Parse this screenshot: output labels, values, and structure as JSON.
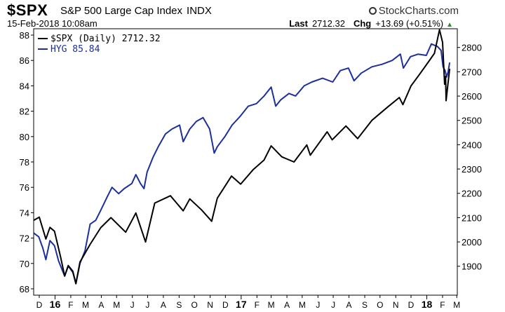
{
  "header": {
    "symbol": "$SPX",
    "name": "S&P 500 Large Cap Index",
    "exchange": "INDX",
    "brand": "StockCharts.com",
    "datetime": "15-Feb-2018 10:08am",
    "last_label": "Last",
    "last_value": "2712.32",
    "chg_label": "Chg",
    "chg_value": "+13.69 (+0.51%)",
    "up_glyph": "▲"
  },
  "chart_data": {
    "type": "line",
    "legend": [
      {
        "text": "$SPX (Daily) 2712.32",
        "color": "#000000"
      },
      {
        "text": "HYG 85.84",
        "color": "#1c2f9c"
      }
    ],
    "left_axis": {
      "series": "HYG",
      "range": [
        67.5,
        88.5
      ],
      "ticks": [
        68,
        70,
        72,
        74,
        76,
        78,
        80,
        82,
        84,
        86,
        88
      ]
    },
    "right_axis": {
      "series": "$SPX",
      "range": [
        1781,
        2877
      ],
      "ticks": [
        1900,
        2000,
        2100,
        2200,
        2300,
        2400,
        2500,
        2600,
        2700,
        2800
      ]
    },
    "x_axis": {
      "range": [
        "2015-11-20",
        "2018-03-02"
      ],
      "ticks": [
        {
          "label": "D",
          "date": "2015-12-01",
          "major": false
        },
        {
          "label": "16",
          "date": "2016-01-01",
          "major": true
        },
        {
          "label": "F",
          "date": "2016-02-01",
          "major": false
        },
        {
          "label": "M",
          "date": "2016-03-01",
          "major": false
        },
        {
          "label": "A",
          "date": "2016-04-01",
          "major": false
        },
        {
          "label": "M",
          "date": "2016-05-01",
          "major": false
        },
        {
          "label": "J",
          "date": "2016-06-01",
          "major": false
        },
        {
          "label": "J",
          "date": "2016-07-01",
          "major": false
        },
        {
          "label": "A",
          "date": "2016-08-01",
          "major": false
        },
        {
          "label": "S",
          "date": "2016-09-01",
          "major": false
        },
        {
          "label": "O",
          "date": "2016-10-01",
          "major": false
        },
        {
          "label": "N",
          "date": "2016-11-01",
          "major": false
        },
        {
          "label": "D",
          "date": "2016-12-01",
          "major": false
        },
        {
          "label": "17",
          "date": "2017-01-01",
          "major": true
        },
        {
          "label": "F",
          "date": "2017-02-01",
          "major": false
        },
        {
          "label": "M",
          "date": "2017-03-01",
          "major": false
        },
        {
          "label": "A",
          "date": "2017-04-01",
          "major": false
        },
        {
          "label": "M",
          "date": "2017-05-01",
          "major": false
        },
        {
          "label": "J",
          "date": "2017-06-01",
          "major": false
        },
        {
          "label": "J",
          "date": "2017-07-01",
          "major": false
        },
        {
          "label": "A",
          "date": "2017-08-01",
          "major": false
        },
        {
          "label": "S",
          "date": "2017-09-01",
          "major": false
        },
        {
          "label": "O",
          "date": "2017-10-01",
          "major": false
        },
        {
          "label": "N",
          "date": "2017-11-01",
          "major": false
        },
        {
          "label": "D",
          "date": "2017-12-01",
          "major": false
        },
        {
          "label": "18",
          "date": "2018-01-01",
          "major": true
        },
        {
          "label": "F",
          "date": "2018-02-01",
          "major": false
        },
        {
          "label": "M",
          "date": "2018-03-01",
          "major": false
        }
      ]
    },
    "grid": false,
    "series": [
      {
        "name": "HYG",
        "axis": "left",
        "color": "#1c2f9c",
        "points": [
          [
            "2015-11-20",
            72.4
          ],
          [
            "2015-11-30",
            72.1
          ],
          [
            "2015-12-08",
            71.2
          ],
          [
            "2015-12-14",
            70.3
          ],
          [
            "2015-12-22",
            71.8
          ],
          [
            "2015-12-31",
            71.4
          ],
          [
            "2016-01-08",
            70.2
          ],
          [
            "2016-01-20",
            69.0
          ],
          [
            "2016-01-27",
            69.8
          ],
          [
            "2016-02-05",
            69.3
          ],
          [
            "2016-02-11",
            68.4
          ],
          [
            "2016-02-19",
            70.0
          ],
          [
            "2016-02-29",
            71.0
          ],
          [
            "2016-03-10",
            73.1
          ],
          [
            "2016-03-21",
            73.4
          ],
          [
            "2016-03-31",
            74.2
          ],
          [
            "2016-04-12",
            75.2
          ],
          [
            "2016-04-22",
            76.0
          ],
          [
            "2016-05-05",
            75.5
          ],
          [
            "2016-05-16",
            75.9
          ],
          [
            "2016-05-31",
            76.3
          ],
          [
            "2016-06-08",
            77.0
          ],
          [
            "2016-06-17",
            76.3
          ],
          [
            "2016-06-24",
            75.9
          ],
          [
            "2016-06-30",
            77.2
          ],
          [
            "2016-07-12",
            78.4
          ],
          [
            "2016-07-22",
            79.2
          ],
          [
            "2016-08-05",
            80.2
          ],
          [
            "2016-08-18",
            80.6
          ],
          [
            "2016-09-02",
            80.9
          ],
          [
            "2016-09-09",
            79.6
          ],
          [
            "2016-09-22",
            80.6
          ],
          [
            "2016-10-05",
            81.2
          ],
          [
            "2016-10-18",
            81.5
          ],
          [
            "2016-10-31",
            80.6
          ],
          [
            "2016-11-09",
            78.7
          ],
          [
            "2016-11-15",
            79.2
          ],
          [
            "2016-11-30",
            80.0
          ],
          [
            "2016-12-14",
            80.9
          ],
          [
            "2016-12-30",
            81.6
          ],
          [
            "2017-01-15",
            82.4
          ],
          [
            "2017-01-31",
            82.6
          ],
          [
            "2017-02-15",
            83.2
          ],
          [
            "2017-03-01",
            83.9
          ],
          [
            "2017-03-10",
            82.4
          ],
          [
            "2017-03-20",
            82.9
          ],
          [
            "2017-04-05",
            83.4
          ],
          [
            "2017-04-18",
            83.2
          ],
          [
            "2017-05-05",
            84.0
          ],
          [
            "2017-05-20",
            84.3
          ],
          [
            "2017-06-10",
            84.6
          ],
          [
            "2017-06-30",
            84.3
          ],
          [
            "2017-07-15",
            85.2
          ],
          [
            "2017-07-31",
            85.4
          ],
          [
            "2017-08-11",
            84.4
          ],
          [
            "2017-08-25",
            85.0
          ],
          [
            "2017-09-15",
            85.5
          ],
          [
            "2017-10-05",
            85.7
          ],
          [
            "2017-10-25",
            86.0
          ],
          [
            "2017-11-10",
            86.5
          ],
          [
            "2017-11-16",
            85.4
          ],
          [
            "2017-11-30",
            86.3
          ],
          [
            "2017-12-15",
            86.5
          ],
          [
            "2017-12-31",
            86.4
          ],
          [
            "2018-01-10",
            87.3
          ],
          [
            "2018-01-22",
            87.1
          ],
          [
            "2018-01-29",
            86.8
          ],
          [
            "2018-02-02",
            85.5
          ],
          [
            "2018-02-06",
            85.2
          ],
          [
            "2018-02-09",
            84.7
          ],
          [
            "2018-02-12",
            85.1
          ],
          [
            "2018-02-15",
            85.84
          ]
        ]
      },
      {
        "name": "$SPX",
        "axis": "right",
        "color": "#000000",
        "points": [
          [
            "2015-11-20",
            2089
          ],
          [
            "2015-12-01",
            2102
          ],
          [
            "2015-12-14",
            2012
          ],
          [
            "2015-12-22",
            2060
          ],
          [
            "2015-12-31",
            2044
          ],
          [
            "2016-01-12",
            1938
          ],
          [
            "2016-01-20",
            1860
          ],
          [
            "2016-01-27",
            1903
          ],
          [
            "2016-02-05",
            1880
          ],
          [
            "2016-02-11",
            1829
          ],
          [
            "2016-02-19",
            1917
          ],
          [
            "2016-03-10",
            1990
          ],
          [
            "2016-03-31",
            2059
          ],
          [
            "2016-04-20",
            2100
          ],
          [
            "2016-05-19",
            2040
          ],
          [
            "2016-06-08",
            2119
          ],
          [
            "2016-06-27",
            2000
          ],
          [
            "2016-07-15",
            2160
          ],
          [
            "2016-08-15",
            2190
          ],
          [
            "2016-09-09",
            2128
          ],
          [
            "2016-09-22",
            2177
          ],
          [
            "2016-10-15",
            2132
          ],
          [
            "2016-11-04",
            2085
          ],
          [
            "2016-11-15",
            2180
          ],
          [
            "2016-12-13",
            2271
          ],
          [
            "2016-12-31",
            2238
          ],
          [
            "2017-01-25",
            2298
          ],
          [
            "2017-02-15",
            2337
          ],
          [
            "2017-03-01",
            2395
          ],
          [
            "2017-03-22",
            2350
          ],
          [
            "2017-04-15",
            2329
          ],
          [
            "2017-05-10",
            2399
          ],
          [
            "2017-05-17",
            2357
          ],
          [
            "2017-06-19",
            2453
          ],
          [
            "2017-06-29",
            2420
          ],
          [
            "2017-07-26",
            2477
          ],
          [
            "2017-08-18",
            2425
          ],
          [
            "2017-09-15",
            2500
          ],
          [
            "2017-10-15",
            2553
          ],
          [
            "2017-11-08",
            2594
          ],
          [
            "2017-11-15",
            2565
          ],
          [
            "2017-12-01",
            2642
          ],
          [
            "2017-12-18",
            2690
          ],
          [
            "2018-01-05",
            2743
          ],
          [
            "2018-01-16",
            2776
          ],
          [
            "2018-01-26",
            2873
          ],
          [
            "2018-02-01",
            2821
          ],
          [
            "2018-02-05",
            2649
          ],
          [
            "2018-02-07",
            2681
          ],
          [
            "2018-02-08",
            2581
          ],
          [
            "2018-02-12",
            2656
          ],
          [
            "2018-02-15",
            2712.32
          ]
        ]
      }
    ]
  }
}
